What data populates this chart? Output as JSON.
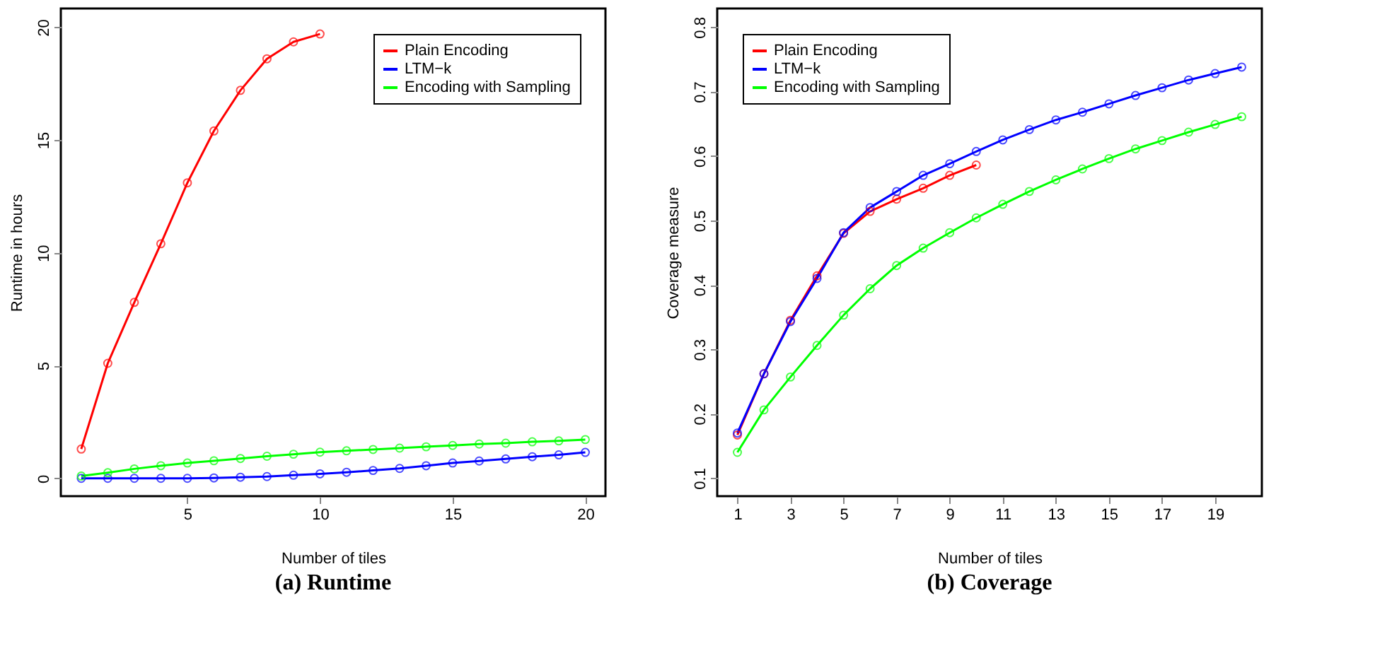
{
  "chart_data": [
    {
      "type": "line",
      "title": "(a) Runtime",
      "xlabel": "Number of tiles",
      "ylabel": "Runtime in hours",
      "x": [
        1,
        2,
        3,
        4,
        5,
        6,
        7,
        8,
        9,
        10,
        11,
        12,
        13,
        14,
        15,
        16,
        17,
        18,
        19,
        20
      ],
      "xlim": [
        0.23,
        20.76
      ],
      "xticks": [
        5,
        10,
        15,
        20
      ],
      "ylim": [
        -0.79,
        20.83
      ],
      "yticks": [
        0,
        5,
        10,
        15,
        20
      ],
      "grid": false,
      "legend": "top right",
      "marker": "circle",
      "line_style": "solid",
      "series": [
        {
          "name": "Plain Encoding",
          "color": "#ff0000",
          "x": [
            1,
            2,
            3,
            4,
            5,
            6,
            7,
            8,
            9,
            10
          ],
          "values": [
            1.3,
            5.1,
            7.8,
            10.4,
            13.1,
            15.4,
            17.2,
            18.6,
            19.35,
            19.7
          ]
        },
        {
          "name": "LTM−k",
          "color": "#0000ff",
          "values": [
            0,
            0,
            0,
            0,
            0,
            0.02,
            0.05,
            0.08,
            0.14,
            0.2,
            0.27,
            0.35,
            0.44,
            0.56,
            0.68,
            0.77,
            0.86,
            0.96,
            1.04,
            1.15
          ]
        },
        {
          "name": "Encoding with Sampling",
          "color": "#00ff00",
          "values": [
            0.1,
            0.25,
            0.42,
            0.56,
            0.68,
            0.78,
            0.88,
            0.98,
            1.07,
            1.16,
            1.22,
            1.28,
            1.34,
            1.4,
            1.46,
            1.52,
            1.56,
            1.62,
            1.66,
            1.72
          ]
        }
      ]
    },
    {
      "type": "line",
      "title": "(b) Coverage",
      "xlabel": "Number of tiles",
      "ylabel": "Coverage measure",
      "x": [
        1,
        2,
        3,
        4,
        5,
        6,
        7,
        8,
        9,
        10,
        11,
        12,
        13,
        14,
        15,
        16,
        17,
        18,
        19,
        20
      ],
      "xlim": [
        0.24,
        20.76
      ],
      "xticks": [
        1,
        3,
        5,
        7,
        9,
        11,
        13,
        15,
        17,
        19
      ],
      "ylim": [
        0.072,
        0.829
      ],
      "yticks": [
        0.1,
        0.2,
        0.3,
        0.4,
        0.5,
        0.6,
        0.7,
        0.8
      ],
      "grid": false,
      "legend": "top left",
      "marker": "circle",
      "line_style": "solid",
      "series": [
        {
          "name": "Plain Encoding",
          "color": "#ff0000",
          "x": [
            1,
            2,
            3,
            4,
            5,
            6,
            7,
            8,
            9,
            10
          ],
          "values": [
            0.167,
            0.262,
            0.345,
            0.414,
            0.48,
            0.514,
            0.533,
            0.55,
            0.57,
            0.586
          ]
        },
        {
          "name": "LTM−k",
          "color": "#0000ff",
          "values": [
            0.17,
            0.262,
            0.343,
            0.41,
            0.481,
            0.52,
            0.545,
            0.57,
            0.588,
            0.607,
            0.625,
            0.641,
            0.656,
            0.668,
            0.681,
            0.694,
            0.706,
            0.718,
            0.728,
            0.738
          ]
        },
        {
          "name": "Encoding with Sampling",
          "color": "#00ff00",
          "values": [
            0.14,
            0.206,
            0.257,
            0.306,
            0.353,
            0.394,
            0.43,
            0.457,
            0.481,
            0.504,
            0.525,
            0.545,
            0.563,
            0.58,
            0.596,
            0.611,
            0.624,
            0.637,
            0.649,
            0.661
          ]
        }
      ]
    }
  ]
}
